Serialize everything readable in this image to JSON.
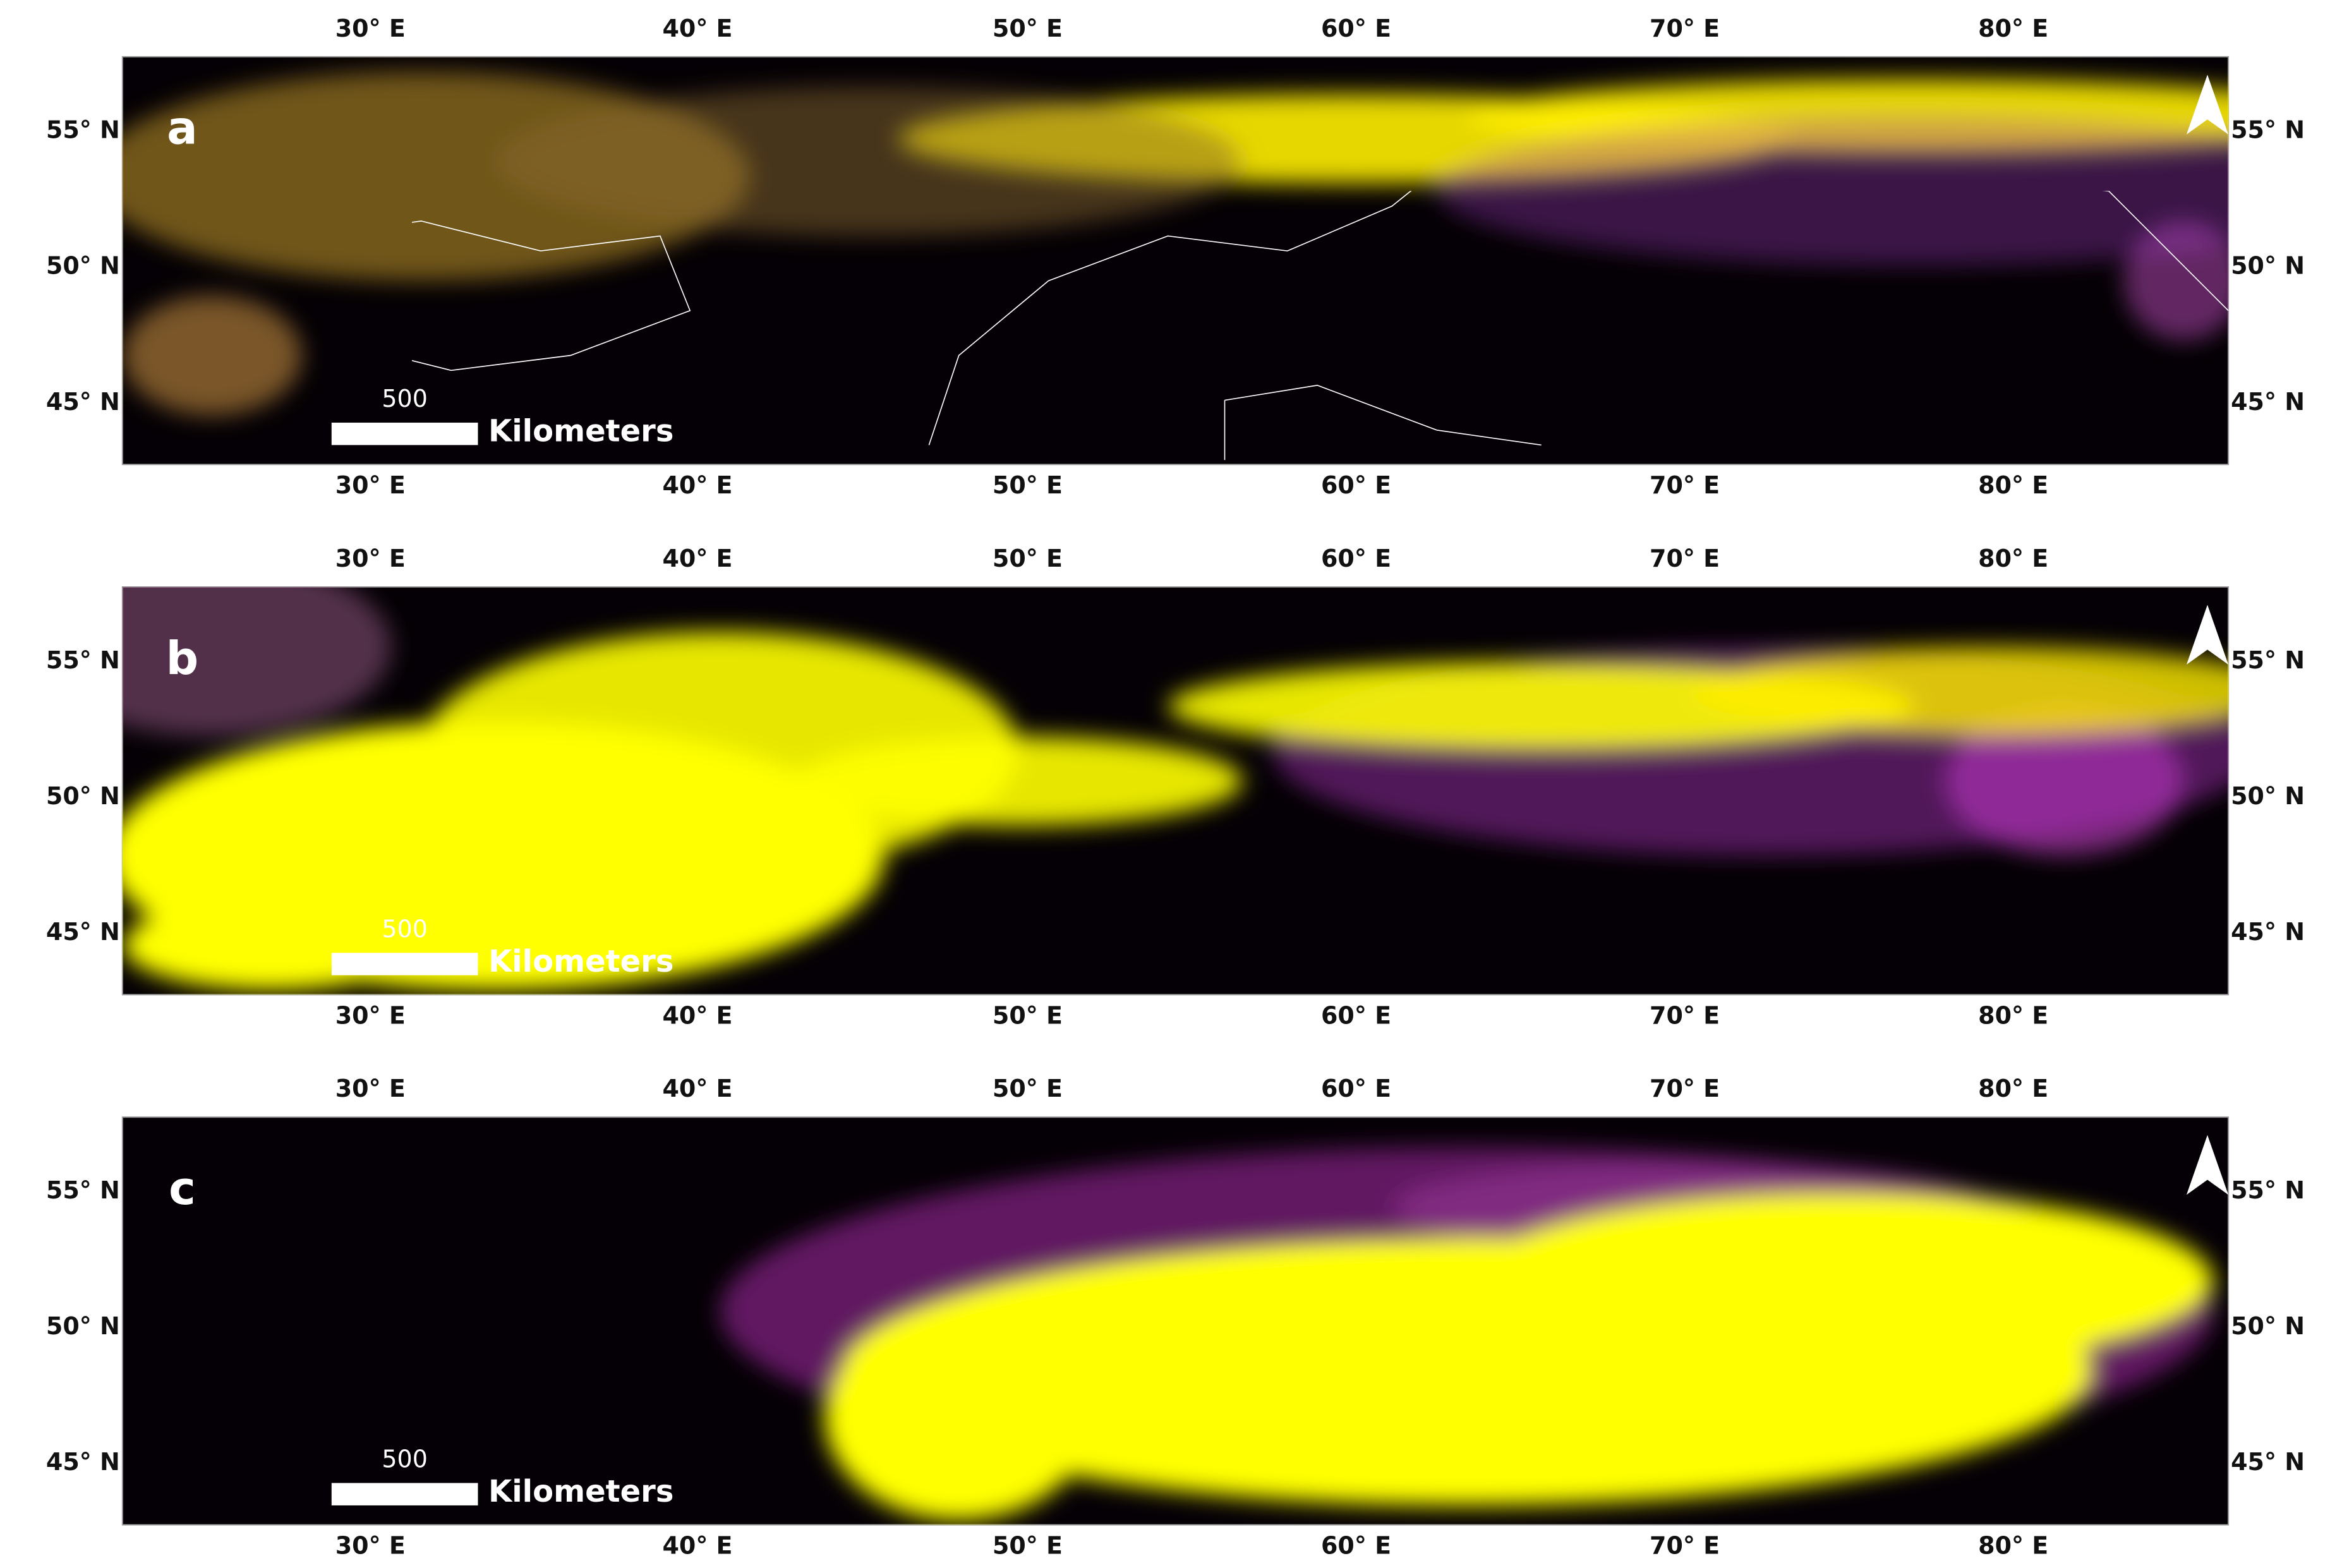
{
  "panels": [
    {
      "label": "a"
    },
    {
      "label": "b"
    },
    {
      "label": "c"
    }
  ],
  "lon_labels": [
    "30° E",
    "40° E",
    "50° E",
    "60° E",
    "70° E",
    "80° E"
  ],
  "lat_labels": [
    "55° N",
    "50° N",
    "45° N"
  ],
  "scale_bar": {
    "distance": "500",
    "unit": "Kilometers"
  }
}
